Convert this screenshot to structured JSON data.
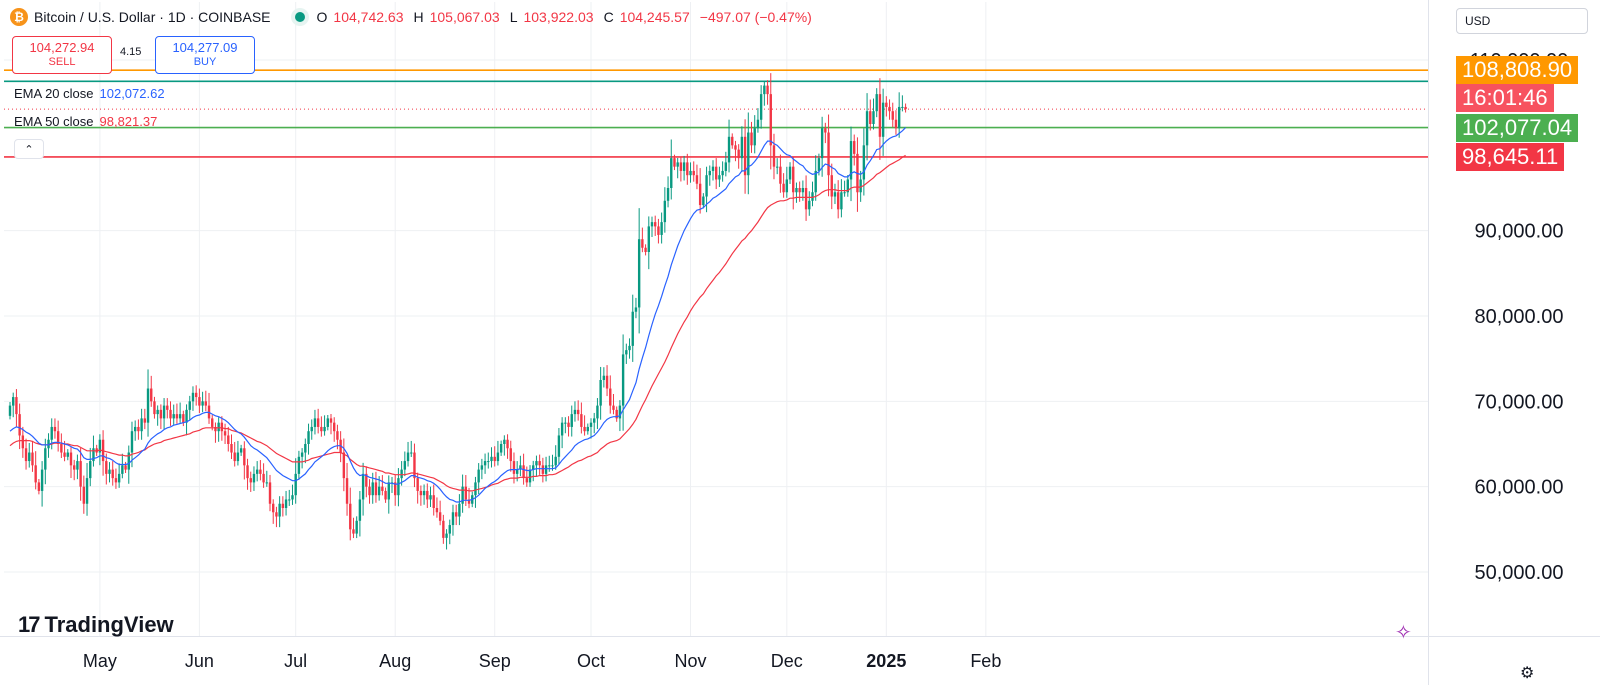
{
  "header": {
    "symbol_title": "Bitcoin / U.S. Dollar · 1D · COINBASE",
    "logo_glyph": "₿",
    "ohlc": [
      {
        "label": "O",
        "value": "104,742.63"
      },
      {
        "label": "H",
        "value": "105,067.03"
      },
      {
        "label": "L",
        "value": "103,922.03"
      },
      {
        "label": "C",
        "value": "104,245.57"
      }
    ],
    "change": "−497.07 (−0.47%)"
  },
  "trade": {
    "sell_price": "104,272.94",
    "sell_label": "SELL",
    "spread": "4.15",
    "buy_price": "104,277.09",
    "buy_label": "BUY"
  },
  "indicators": [
    {
      "label": "EMA 20 close",
      "value": "102,072.62",
      "color": "#2962ff"
    },
    {
      "label": "EMA 50 close",
      "value": "98,821.37",
      "color": "#f23645"
    }
  ],
  "collapse_glyph": "⌃",
  "currency": "USD",
  "price_labels": [
    {
      "text": "108,808.90",
      "price": 108808.9,
      "color": "#ff9800"
    },
    {
      "text": "16:01:46",
      "price": 106650,
      "color": "#f7525f"
    },
    {
      "text": "102,077.04",
      "price": 102077.04,
      "color": "#4caf50"
    },
    {
      "text": "98,645.11",
      "price": 98645.11,
      "color": "#f23645"
    }
  ],
  "horizontal_lines": [
    {
      "price": 108808.9,
      "color": "#ff9800"
    },
    {
      "price": 107500,
      "color": "#089981"
    },
    {
      "price": 102077.04,
      "color": "#4caf50"
    },
    {
      "price": 98645.11,
      "color": "#f23645"
    }
  ],
  "brand": "TradingView",
  "brand_mark": "17",
  "colors": {
    "up": "#089981",
    "down": "#f23645",
    "ema20": "#2962ff",
    "ema50": "#f23645",
    "grid": "#eef0f3"
  },
  "chart_data": {
    "type": "candlestick",
    "title": "Bitcoin / U.S. Dollar · 1D · COINBASE",
    "ylim": [
      44000,
      113000
    ],
    "y_ticks": [
      50000,
      60000,
      70000,
      80000,
      90000,
      110000
    ],
    "y_tick_labels": [
      "50,000.00",
      "60,000.00",
      "70,000.00",
      "80,000.00",
      "90,000.00",
      "110,000.00"
    ],
    "x_ticks": [
      {
        "label": "May",
        "index": 28,
        "bold": false
      },
      {
        "label": "Jun",
        "index": 59,
        "bold": false
      },
      {
        "label": "Jul",
        "index": 89,
        "bold": false
      },
      {
        "label": "Aug",
        "index": 120,
        "bold": false
      },
      {
        "label": "Sep",
        "index": 151,
        "bold": false
      },
      {
        "label": "Oct",
        "index": 181,
        "bold": false
      },
      {
        "label": "Nov",
        "index": 212,
        "bold": false
      },
      {
        "label": "Dec",
        "index": 242,
        "bold": false
      },
      {
        "label": "2025",
        "index": 273,
        "bold": true
      },
      {
        "label": "Feb",
        "index": 304,
        "bold": false
      }
    ],
    "closes": [
      69500,
      70500,
      68500,
      66000,
      64500,
      63000,
      64000,
      62500,
      60500,
      59500,
      62000,
      64500,
      65500,
      67000,
      66500,
      65000,
      64000,
      63500,
      64000,
      62500,
      62000,
      63000,
      60000,
      58000,
      61000,
      63000,
      64500,
      64000,
      65500,
      63000,
      61500,
      62000,
      61000,
      60500,
      61500,
      62500,
      62000,
      64000,
      66500,
      67000,
      66500,
      68000,
      67500,
      71500,
      70000,
      68500,
      69000,
      68000,
      69500,
      69000,
      68000,
      68500,
      68000,
      68500,
      67500,
      69000,
      70000,
      71000,
      70500,
      69500,
      70000,
      69500,
      68000,
      67000,
      66500,
      67500,
      66500,
      66000,
      65000,
      64000,
      63000,
      64000,
      64500,
      62500,
      61000,
      60500,
      61500,
      62000,
      61500,
      60500,
      60500,
      58000,
      57000,
      56500,
      58000,
      57500,
      58500,
      58500,
      59000,
      61500,
      63500,
      64000,
      65000,
      66500,
      67000,
      68000,
      67000,
      66500,
      67000,
      68000,
      67500,
      66500,
      65500,
      64000,
      61000,
      58000,
      55000,
      54500,
      56000,
      58500,
      61500,
      60000,
      59000,
      60500,
      59000,
      60000,
      59500,
      58500,
      60500,
      60500,
      59000,
      61000,
      62000,
      63000,
      64000,
      64000,
      61000,
      59500,
      59000,
      59500,
      58500,
      59000,
      57500,
      57000,
      56000,
      54000,
      54500,
      55500,
      57000,
      56500,
      58000,
      60000,
      58500,
      58000,
      59000,
      60500,
      62000,
      62500,
      63000,
      63000,
      63500,
      63000,
      64000,
      65000,
      65500,
      64500,
      63000,
      61500,
      62000,
      62500,
      61000,
      60500,
      62000,
      62500,
      63000,
      62500,
      61500,
      62500,
      62500,
      62500,
      63500,
      66000,
      67500,
      67500,
      67000,
      68500,
      69000,
      68500,
      67000,
      66500,
      67000,
      67500,
      68000,
      69500,
      72500,
      73000,
      71500,
      69500,
      69000,
      68000,
      69500,
      75500,
      76000,
      76500,
      80500,
      81000,
      89000,
      88000,
      87500,
      90500,
      91000,
      90500,
      89500,
      91000,
      93500,
      95000,
      98500,
      97500,
      98000,
      97000,
      98000,
      96500,
      97000,
      96500,
      95500,
      93000,
      94000,
      96500,
      97000,
      97500,
      96000,
      96500,
      97000,
      98000,
      101000,
      100000,
      99500,
      98500,
      101000,
      96500,
      101500,
      100000,
      102000,
      103000,
      106000,
      107000,
      106000,
      100000,
      97500,
      97500,
      95500,
      94500,
      96000,
      97500,
      94500,
      95000,
      94500,
      95000,
      92500,
      93500,
      94500,
      97000,
      98500,
      102000,
      101500,
      96500,
      94000,
      94500,
      92500,
      94500,
      94500,
      96000,
      100500,
      99000,
      94500,
      96000,
      100000,
      104000,
      102500,
      104000,
      106000,
      101000,
      105000,
      104500,
      104000,
      103000,
      102000,
      104500,
      104500,
      104245.57
    ],
    "ema20": [
      66500,
      66800,
      67000,
      66900,
      66700,
      66400,
      66200,
      65900,
      65500,
      65100,
      64900,
      64900,
      64900,
      65100,
      65200,
      65200,
      65100,
      65000,
      64900,
      64700,
      64500,
      64400,
      64000,
      63400,
      63200,
      63200,
      63300,
      63400,
      63600,
      63600,
      63400,
      63300,
      63100,
      62800,
      62600,
      62600,
      62600,
      62700,
      63100,
      63400,
      63700,
      64100,
      64400,
      65100,
      65600,
      65900,
      66200,
      66400,
      66700,
      66900,
      67000,
      67200,
      67300,
      67400,
      67500,
      67600,
      67800,
      68100,
      68300,
      68400,
      68600,
      68700,
      68700,
      68500,
      68300,
      68200,
      68000,
      67800,
      67500,
      67100,
      66700,
      66400,
      66200,
      65800,
      65300,
      64800,
      64500,
      64300,
      64000,
      63700,
      63400,
      62900,
      62400,
      61900,
      61600,
      61300,
      61100,
      60900,
      60700,
      60700,
      60900,
      61200,
      61500,
      62000,
      62400,
      62900,
      63200,
      63500,
      63800,
      64200,
      64500,
      64700,
      64800,
      64800,
      64500,
      63900,
      63000,
      62200,
      61600,
      61300,
      61400,
      61300,
      61100,
      61000,
      60900,
      60800,
      60600,
      60400,
      60400,
      60400,
      60300,
      60300,
      60500,
      60700,
      61000,
      61300,
      61300,
      61100,
      61000,
      60900,
      60700,
      60600,
      60400,
      60100,
      59700,
      59200,
      58800,
      58500,
      58400,
      58200,
      58200,
      58400,
      58400,
      58400,
      58500,
      58700,
      59000,
      59400,
      59800,
      60100,
      60400,
      60600,
      60900,
      61300,
      61600,
      61900,
      62000,
      62000,
      62000,
      62100,
      62000,
      61900,
      61900,
      62000,
      62100,
      62100,
      62100,
      62100,
      62100,
      62100,
      62200,
      62600,
      63100,
      63500,
      63900,
      64300,
      64800,
      65100,
      65300,
      65500,
      65600,
      65800,
      66000,
      66400,
      66900,
      67500,
      67900,
      68100,
      68200,
      68200,
      68300,
      69000,
      69600,
      70200,
      71200,
      72200,
      73800,
      75100,
      76300,
      77700,
      79000,
      80200,
      81200,
      82300,
      83500,
      84600,
      86000,
      87100,
      88200,
      89100,
      90000,
      90700,
      91400,
      92000,
      92400,
      92500,
      92700,
      93100,
      93400,
      93800,
      94000,
      94300,
      94600,
      94900,
      95500,
      95900,
      96300,
      96500,
      97000,
      97000,
      97500,
      97700,
      98100,
      98600,
      99300,
      100000,
      100500,
      100500,
      100200,
      100000,
      99600,
      99200,
      98900,
      98800,
      98400,
      98100,
      97800,
      97600,
      97100,
      96800,
      96600,
      96700,
      96900,
      97400,
      97800,
      97700,
      97400,
      97200,
      96700,
      96500,
      96300,
      96300,
      96700,
      96900,
      96700,
      96600,
      96900,
      97700,
      98200,
      98800,
      99500,
      99600,
      100100,
      100500,
      100800,
      101000,
      101100,
      101400,
      101700,
      102072.62
    ],
    "ema50": [
      64800,
      65100,
      65300,
      65400,
      65400,
      65400,
      65400,
      65300,
      65100,
      65000,
      64900,
      64900,
      64900,
      65000,
      65100,
      65100,
      65100,
      65000,
      65000,
      64900,
      64800,
      64800,
      64600,
      64400,
      64200,
      64200,
      64200,
      64200,
      64300,
      64200,
      64100,
      64000,
      63900,
      63800,
      63700,
      63700,
      63600,
      63600,
      63800,
      63900,
      64000,
      64200,
      64300,
      64600,
      64800,
      65000,
      65100,
      65200,
      65400,
      65500,
      65600,
      65700,
      65800,
      65900,
      66000,
      66100,
      66200,
      66400,
      66500,
      66600,
      66800,
      66900,
      66900,
      66900,
      66900,
      66900,
      66900,
      66800,
      66800,
      66600,
      66500,
      66400,
      66300,
      66100,
      65900,
      65700,
      65500,
      65300,
      65200,
      65000,
      64800,
      64500,
      64200,
      63900,
      63700,
      63500,
      63300,
      63100,
      62900,
      62900,
      62900,
      62900,
      63000,
      63100,
      63300,
      63400,
      63500,
      63600,
      63700,
      63800,
      63900,
      64000,
      64000,
      64000,
      63800,
      63600,
      63200,
      62900,
      62600,
      62400,
      62400,
      62300,
      62200,
      62100,
      62000,
      61900,
      61800,
      61600,
      61600,
      61500,
      61400,
      61400,
      61400,
      61400,
      61500,
      61600,
      61600,
      61500,
      61400,
      61300,
      61200,
      61100,
      61000,
      60800,
      60600,
      60400,
      60100,
      59900,
      59800,
      59700,
      59600,
      59600,
      59600,
      59500,
      59500,
      59600,
      59700,
      59800,
      59900,
      60000,
      60200,
      60300,
      60400,
      60600,
      60800,
      60900,
      61000,
      61000,
      61000,
      61100,
      61100,
      61100,
      61100,
      61200,
      61200,
      61300,
      61300,
      61300,
      61400,
      61400,
      61500,
      61700,
      61900,
      62100,
      62300,
      62600,
      62800,
      63000,
      63100,
      63300,
      63500,
      63600,
      63800,
      64000,
      64400,
      64700,
      65000,
      65200,
      65300,
      65400,
      65600,
      66000,
      66400,
      66800,
      67300,
      67900,
      68700,
      69500,
      70200,
      71000,
      71800,
      72500,
      73200,
      73900,
      74600,
      75400,
      76300,
      77100,
      77900,
      78600,
      79300,
      79900,
      80600,
      81200,
      81700,
      82200,
      82600,
      83200,
      83700,
      84200,
      84700,
      85100,
      85600,
      86100,
      86700,
      87300,
      87800,
      88300,
      88800,
      89100,
      89600,
      90000,
      90500,
      91000,
      91600,
      92200,
      92700,
      93000,
      93200,
      93400,
      93500,
      93500,
      93600,
      93800,
      93800,
      93900,
      93900,
      93900,
      93900,
      93900,
      93900,
      94000,
      94200,
      94500,
      94700,
      94800,
      94800,
      94800,
      94700,
      94700,
      94700,
      94700,
      95000,
      95100,
      95100,
      95100,
      95300,
      95600,
      95900,
      96200,
      96600,
      96800,
      97100,
      97400,
      97700,
      97900,
      98100,
      98300,
      98600,
      98821.37
    ]
  }
}
